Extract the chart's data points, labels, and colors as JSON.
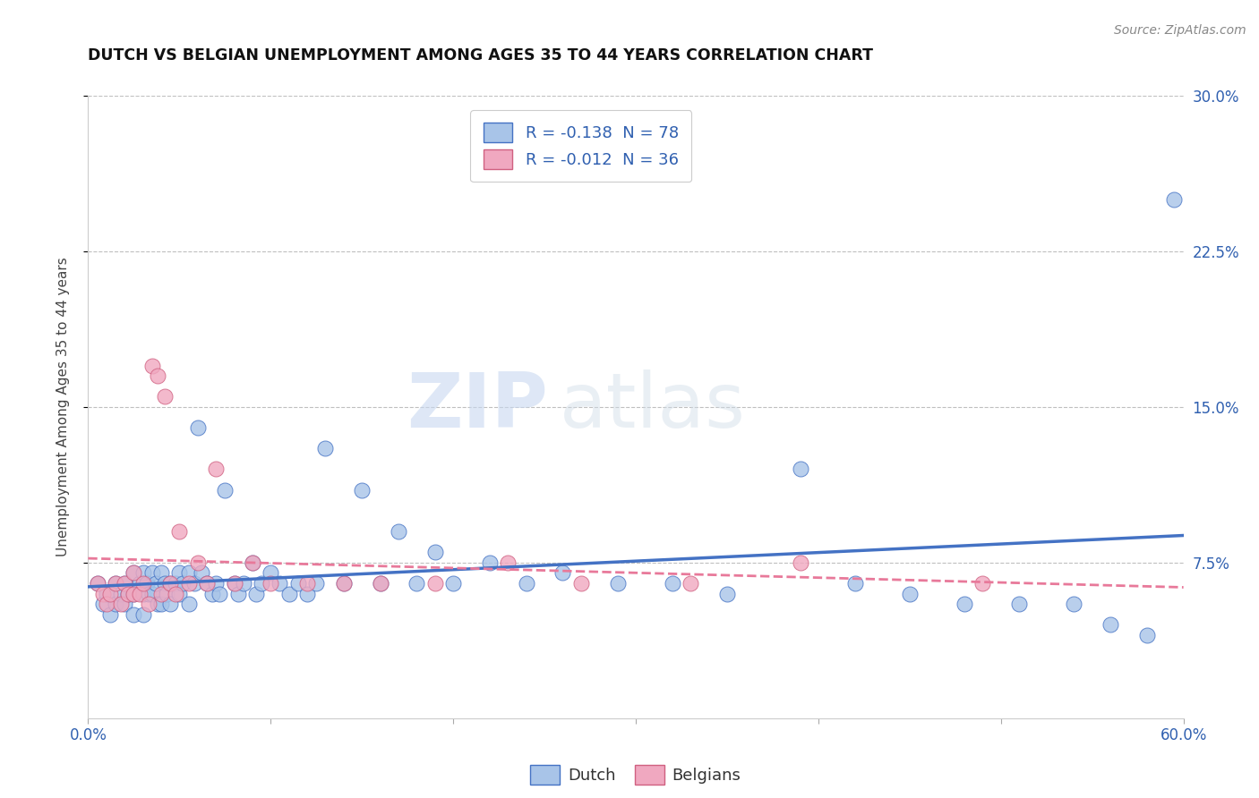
{
  "title": "DUTCH VS BELGIAN UNEMPLOYMENT AMONG AGES 35 TO 44 YEARS CORRELATION CHART",
  "source": "Source: ZipAtlas.com",
  "ylabel": "Unemployment Among Ages 35 to 44 years",
  "xlim": [
    0.0,
    0.6
  ],
  "ylim": [
    0.0,
    0.3
  ],
  "ytick_vals": [
    0.075,
    0.15,
    0.225,
    0.3
  ],
  "ytick_labels": [
    "7.5%",
    "15.0%",
    "22.5%",
    "30.0%"
  ],
  "xtick_vals": [
    0.0,
    0.1,
    0.2,
    0.3,
    0.4,
    0.5,
    0.6
  ],
  "xtick_labels": [
    "0.0%",
    "",
    "",
    "",
    "",
    "",
    "60.0%"
  ],
  "legend_dutch_r": "R = -0.138",
  "legend_dutch_n": "N = 78",
  "legend_belgian_r": "R = -0.012",
  "legend_belgian_n": "N = 36",
  "dutch_color": "#a8c4e8",
  "belgian_color": "#f0a8c0",
  "dutch_line_color": "#4472c4",
  "belgian_line_color": "#e8799a",
  "watermark_zip": "ZIP",
  "watermark_atlas": "atlas",
  "dutch_x": [
    0.005,
    0.008,
    0.01,
    0.012,
    0.015,
    0.015,
    0.018,
    0.02,
    0.02,
    0.022,
    0.025,
    0.025,
    0.025,
    0.028,
    0.03,
    0.03,
    0.03,
    0.032,
    0.033,
    0.035,
    0.035,
    0.037,
    0.038,
    0.04,
    0.04,
    0.042,
    0.043,
    0.045,
    0.045,
    0.048,
    0.05,
    0.05,
    0.052,
    0.055,
    0.055,
    0.058,
    0.06,
    0.062,
    0.065,
    0.068,
    0.07,
    0.072,
    0.075,
    0.08,
    0.082,
    0.085,
    0.09,
    0.092,
    0.095,
    0.1,
    0.105,
    0.11,
    0.115,
    0.12,
    0.125,
    0.13,
    0.14,
    0.15,
    0.16,
    0.17,
    0.18,
    0.19,
    0.2,
    0.22,
    0.24,
    0.26,
    0.29,
    0.32,
    0.35,
    0.39,
    0.42,
    0.45,
    0.48,
    0.51,
    0.54,
    0.56,
    0.58,
    0.595
  ],
  "dutch_y": [
    0.065,
    0.055,
    0.06,
    0.05,
    0.065,
    0.055,
    0.06,
    0.065,
    0.055,
    0.06,
    0.07,
    0.06,
    0.05,
    0.065,
    0.07,
    0.06,
    0.05,
    0.065,
    0.06,
    0.07,
    0.06,
    0.065,
    0.055,
    0.07,
    0.055,
    0.065,
    0.06,
    0.065,
    0.055,
    0.065,
    0.07,
    0.06,
    0.065,
    0.07,
    0.055,
    0.065,
    0.14,
    0.07,
    0.065,
    0.06,
    0.065,
    0.06,
    0.11,
    0.065,
    0.06,
    0.065,
    0.075,
    0.06,
    0.065,
    0.07,
    0.065,
    0.06,
    0.065,
    0.06,
    0.065,
    0.13,
    0.065,
    0.11,
    0.065,
    0.09,
    0.065,
    0.08,
    0.065,
    0.075,
    0.065,
    0.07,
    0.065,
    0.065,
    0.06,
    0.12,
    0.065,
    0.06,
    0.055,
    0.055,
    0.055,
    0.045,
    0.04,
    0.25
  ],
  "belgian_x": [
    0.005,
    0.008,
    0.01,
    0.012,
    0.015,
    0.018,
    0.02,
    0.022,
    0.025,
    0.025,
    0.028,
    0.03,
    0.033,
    0.035,
    0.038,
    0.04,
    0.042,
    0.045,
    0.048,
    0.05,
    0.055,
    0.06,
    0.065,
    0.07,
    0.08,
    0.09,
    0.1,
    0.12,
    0.14,
    0.16,
    0.19,
    0.23,
    0.27,
    0.33,
    0.39,
    0.49
  ],
  "belgian_y": [
    0.065,
    0.06,
    0.055,
    0.06,
    0.065,
    0.055,
    0.065,
    0.06,
    0.07,
    0.06,
    0.06,
    0.065,
    0.055,
    0.17,
    0.165,
    0.06,
    0.155,
    0.065,
    0.06,
    0.09,
    0.065,
    0.075,
    0.065,
    0.12,
    0.065,
    0.075,
    0.065,
    0.065,
    0.065,
    0.065,
    0.065,
    0.075,
    0.065,
    0.065,
    0.075,
    0.065
  ]
}
